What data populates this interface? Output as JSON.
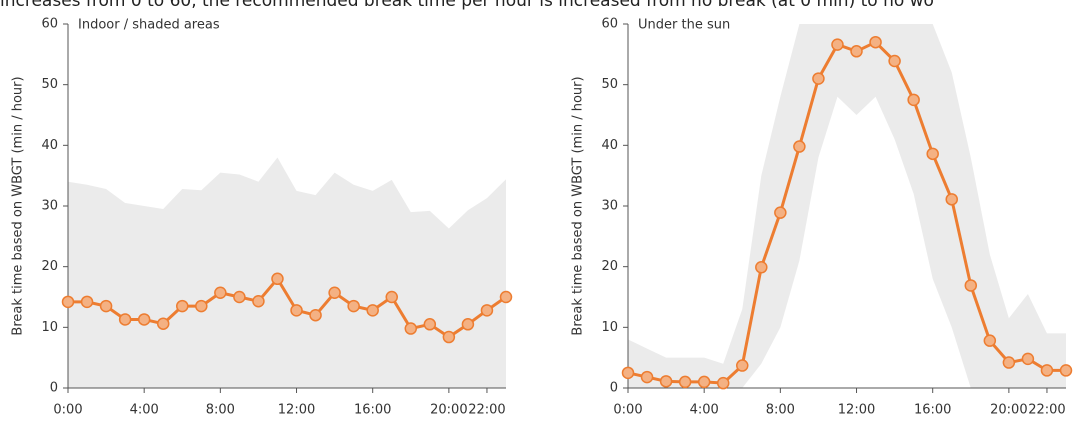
{
  "caption": "increases from 0 to 60, the recommended break time per hour is increased from no break (at 0 min) to no wo",
  "chart_data": [
    {
      "type": "line",
      "title": "Indoor / shaded areas",
      "y_label": "Break time based on WBGT (min / hour)",
      "x": [
        0,
        1,
        2,
        3,
        4,
        5,
        6,
        7,
        8,
        9,
        10,
        11,
        12,
        13,
        14,
        15,
        16,
        17,
        18,
        19,
        20,
        21,
        22,
        23
      ],
      "series": [
        {
          "color": "#ed7d31",
          "marker_color": "#f4b183",
          "values": [
            14.2,
            14.2,
            13.5,
            11.3,
            11.3,
            10.6,
            13.5,
            13.5,
            15.7,
            15,
            14.3,
            18,
            12.8,
            12,
            15.7,
            13.5,
            12.8,
            15,
            9.8,
            10.5,
            8.4,
            10.5,
            12.8,
            15
          ]
        }
      ],
      "band": {
        "color": "#ebebeb",
        "upper": [
          34,
          33.5,
          32.8,
          30.5,
          30,
          29.5,
          32.8,
          32.6,
          35.5,
          35.2,
          34,
          38,
          32.5,
          31.8,
          35.5,
          33.5,
          32.5,
          34.3,
          29,
          29.2,
          26.3,
          29.3,
          31.3,
          34.4
        ],
        "lower": [
          0,
          0,
          0,
          0,
          0,
          0,
          0,
          0,
          0,
          0,
          0,
          0,
          0,
          0,
          0,
          0,
          0,
          0,
          0,
          0,
          0,
          0,
          0,
          0
        ]
      },
      "xlim": [
        0,
        23
      ],
      "ylim": [
        0,
        60
      ],
      "yticks": [
        0,
        10,
        20,
        30,
        40,
        50,
        60
      ],
      "xticks": [
        {
          "value": 0,
          "label": "0:00"
        },
        {
          "value": 4,
          "label": "4:00"
        },
        {
          "value": 8,
          "label": "8:00"
        },
        {
          "value": 12,
          "label": "12:00"
        },
        {
          "value": 16,
          "label": "16:00"
        },
        {
          "value": 20,
          "label": "20:00"
        },
        {
          "value": 22,
          "label": "22:00"
        }
      ]
    },
    {
      "type": "line",
      "title": "Under the sun",
      "y_label": "Break time based on WBGT (min / hour)",
      "x": [
        0,
        1,
        2,
        3,
        4,
        5,
        6,
        7,
        8,
        9,
        10,
        11,
        12,
        13,
        14,
        15,
        16,
        17,
        18,
        19,
        20,
        21,
        22,
        23
      ],
      "series": [
        {
          "color": "#ed7d31",
          "marker_color": "#f4b183",
          "values": [
            2.5,
            1.8,
            1.1,
            1,
            1,
            0.8,
            3.7,
            19.9,
            28.9,
            39.8,
            51,
            56.6,
            55.5,
            57,
            53.9,
            47.5,
            38.6,
            31.1,
            16.9,
            7.8,
            4.2,
            4.8,
            2.9,
            2.9
          ]
        }
      ],
      "band": {
        "color": "#ebebeb",
        "upper": [
          8,
          6.5,
          5,
          5,
          5,
          4,
          13,
          35,
          48,
          60,
          60,
          60,
          60,
          60,
          60,
          60,
          60,
          52,
          38,
          22,
          11.5,
          15.5,
          9,
          9
        ],
        "lower": [
          0,
          0,
          0,
          0,
          0,
          0,
          0,
          4,
          10,
          21,
          38,
          48,
          45,
          48,
          41,
          32,
          18,
          10,
          0,
          0,
          0,
          0,
          0,
          0
        ]
      },
      "xlim": [
        0,
        23
      ],
      "ylim": [
        0,
        60
      ],
      "yticks": [
        0,
        10,
        20,
        30,
        40,
        50,
        60
      ],
      "xticks": [
        {
          "value": 0,
          "label": "0:00"
        },
        {
          "value": 4,
          "label": "4:00"
        },
        {
          "value": 8,
          "label": "8:00"
        },
        {
          "value": 12,
          "label": "12:00"
        },
        {
          "value": 16,
          "label": "16:00"
        },
        {
          "value": 20,
          "label": "20:00"
        },
        {
          "value": 22,
          "label": "22:00"
        }
      ]
    }
  ]
}
